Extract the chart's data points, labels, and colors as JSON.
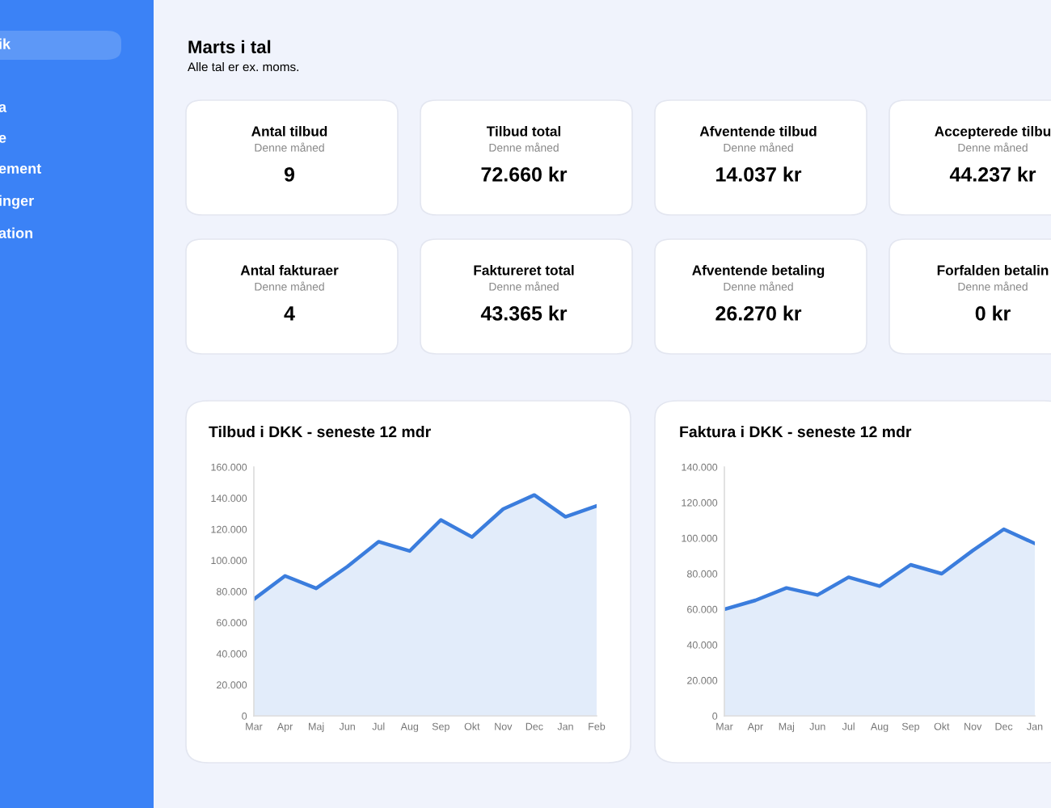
{
  "chart_data": [
    {
      "type": "other",
      "title": "Marts i tal",
      "subtitle": "Alle tal er ex. moms.",
      "annotations": [
        "ik",
        "a",
        "e",
        "ement",
        "inger",
        "ation",
        "Antal tilbud",
        "Denne måned",
        "9",
        "Tilbud total",
        "Denne måned",
        "72.660 kr",
        "Afventende tilbud",
        "Denne måned",
        "14.037 kr",
        "Accepterede tilbu",
        "Denne måned",
        "44.237 kr",
        "Antal fakturaer",
        "Denne måned",
        "4",
        "Faktureret total",
        "Denne måned",
        "43.365 kr",
        "Afventende betaling",
        "Denne måned",
        "26.270 kr",
        "Forfalden betalin",
        "Denne måned",
        "0 kr"
      ]
    },
    {
      "type": "area",
      "title": "Tilbud i DKK - seneste 12 mdr",
      "categories": [
        "Mar",
        "Apr",
        "Maj",
        "Jun",
        "Jul",
        "Aug",
        "Sep",
        "Okt",
        "Nov",
        "Dec",
        "Jan",
        "Feb"
      ],
      "series": [
        {
          "color": "#3b7ddd",
          "values": [
            75000,
            90000,
            82000,
            96000,
            112000,
            106000,
            126000,
            115000,
            133000,
            142000,
            128000,
            135000
          ]
        }
      ],
      "ylim": [
        0,
        160000
      ],
      "yticks": [
        0,
        {
          "value": 20000,
          "label": "20.000"
        },
        {
          "value": 40000,
          "label": "40.000"
        },
        {
          "value": 60000,
          "label": "60.000"
        },
        {
          "value": 80000,
          "label": "80.000"
        },
        {
          "value": 100000,
          "label": "100.000"
        },
        {
          "value": 120000,
          "label": "120.000"
        },
        {
          "value": 140000,
          "label": "140.000"
        },
        {
          "value": 160000,
          "label": "160.000"
        }
      ],
      "grid": false,
      "legend": false
    },
    {
      "type": "area",
      "title": "Faktura i DKK - seneste 12 mdr",
      "categories": [
        "Mar",
        "Apr",
        "Maj",
        "Jun",
        "Jul",
        "Aug",
        "Sep",
        "Okt",
        "Nov",
        "Dec",
        "Jan"
      ],
      "series": [
        {
          "color": "#3b7ddd",
          "values": [
            60000,
            65000,
            72000,
            68000,
            78000,
            73000,
            85000,
            80000,
            93000,
            105000,
            97000
          ]
        }
      ],
      "ylim": [
        0,
        140000
      ],
      "yticks": [
        0,
        {
          "value": 20000,
          "label": "20.000"
        },
        {
          "value": 40000,
          "label": "40.000"
        },
        {
          "value": 60000,
          "label": "60.000"
        },
        {
          "value": 80000,
          "label": "80.000"
        },
        {
          "value": 100000,
          "label": "100.000"
        },
        {
          "value": 120000,
          "label": "120.000"
        },
        {
          "value": 140000,
          "label": "140.000"
        }
      ],
      "grid": false,
      "legend": false
    }
  ]
}
